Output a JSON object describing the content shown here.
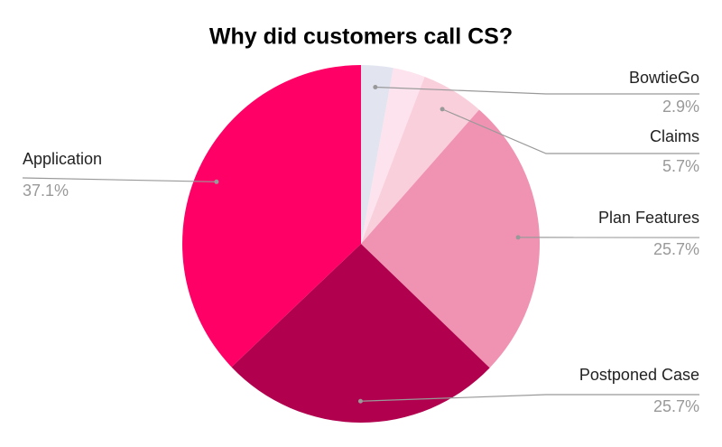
{
  "chart_data": {
    "type": "pie",
    "title": "Why did customers call CS?",
    "categories": [
      "BowtieGo",
      null,
      "Claims",
      "Plan Features",
      "Postponed Case",
      "Application"
    ],
    "values": [
      2.9,
      2.9,
      5.7,
      25.7,
      25.7,
      37.1
    ],
    "value_labels": [
      "2.9%",
      null,
      "5.7%",
      "25.7%",
      "25.7%",
      "37.1%"
    ],
    "colors": [
      "#e2e4f0",
      "#fce3ed",
      "#f9cfdc",
      "#f093b3",
      "#b0004e",
      "#ff0066"
    ]
  }
}
